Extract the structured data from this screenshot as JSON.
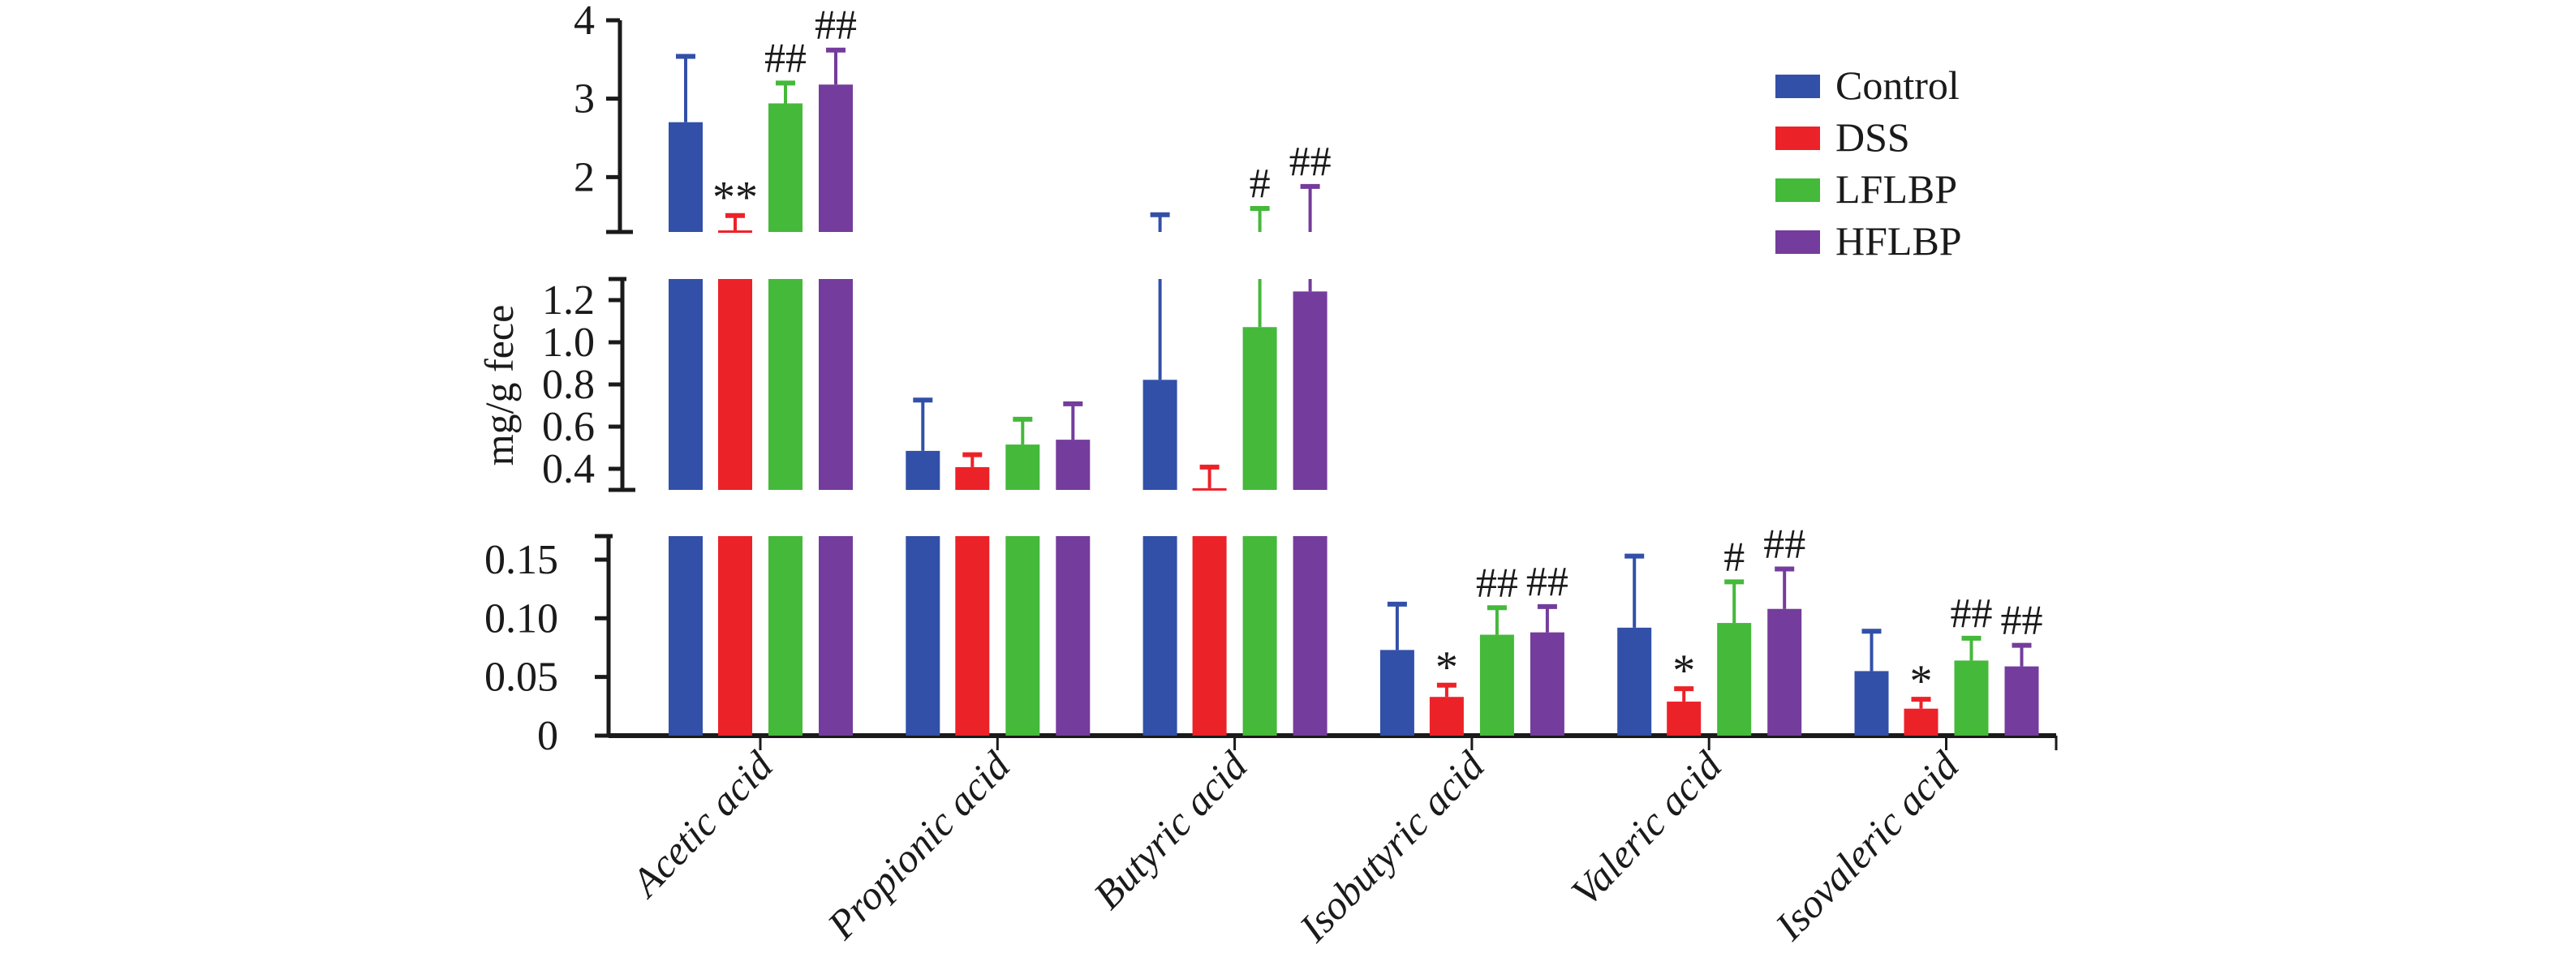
{
  "chart_data": {
    "type": "bar",
    "title": "",
    "xlabel": "",
    "ylabel": "mg/g fece",
    "categories": [
      "Acetic acid",
      "Propionic acid",
      "Butyric acid",
      "Isobutyric acid",
      "Valeric acid",
      "Isovaleric acid"
    ],
    "y_axis_segments": [
      {
        "range": [
          0,
          0.17
        ],
        "ticks": [
          0,
          0.05,
          0.1,
          0.15
        ],
        "tick_labels": [
          "0",
          "0.05",
          "0.10",
          "0.15"
        ]
      },
      {
        "range": [
          0.3,
          1.3
        ],
        "ticks": [
          0.4,
          0.6,
          0.8,
          1.0,
          1.2
        ],
        "tick_labels": [
          "0.4",
          "0.6",
          "0.8",
          "1.0",
          "1.2"
        ]
      },
      {
        "range": [
          1.3,
          4
        ],
        "ticks": [
          2,
          3,
          4
        ],
        "tick_labels": [
          "2",
          "3",
          "4"
        ]
      }
    ],
    "series": [
      {
        "name": "Control",
        "color": "#3250a8",
        "values": [
          2.7,
          0.485,
          0.822,
          0.073,
          0.092,
          0.055
        ],
        "error_upper": [
          3.54,
          0.726,
          1.52,
          0.112,
          0.153,
          0.089
        ],
        "annotations": [
          "",
          "",
          "",
          "",
          "",
          ""
        ]
      },
      {
        "name": "DSS",
        "color": "#ec2229",
        "values": [
          1.32,
          0.408,
          0.308,
          0.033,
          0.029,
          0.023
        ],
        "error_upper": [
          1.51,
          0.467,
          0.408,
          0.043,
          0.04,
          0.031
        ],
        "annotations": [
          "**",
          "",
          "",
          "*",
          "*",
          "*"
        ]
      },
      {
        "name": "LFLBP",
        "color": "#44b93a",
        "values": [
          2.94,
          0.515,
          1.072,
          0.086,
          0.096,
          0.064
        ],
        "error_upper": [
          3.2,
          0.635,
          1.6,
          0.109,
          0.131,
          0.083
        ],
        "annotations": [
          "##",
          "",
          "#",
          "##",
          "#",
          "##"
        ]
      },
      {
        "name": "HFLBP",
        "color": "#743c9c",
        "values": [
          3.18,
          0.538,
          1.241,
          0.088,
          0.108,
          0.059
        ],
        "error_upper": [
          3.62,
          0.708,
          1.88,
          0.11,
          0.142,
          0.077
        ],
        "annotations": [
          "##",
          "",
          "##",
          "##",
          "##",
          "##"
        ]
      }
    ],
    "legend": {
      "position": "top-right",
      "entries": [
        "Control",
        "DSS",
        "LFLBP",
        "HFLBP"
      ]
    },
    "grid": false
  }
}
